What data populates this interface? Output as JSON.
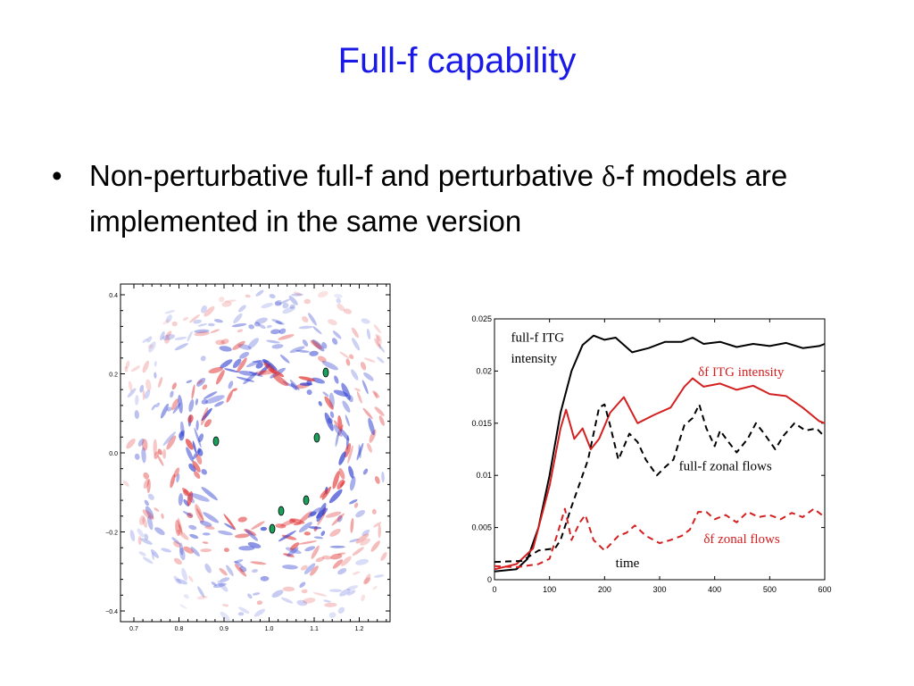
{
  "slide": {
    "title": "Full-f capability",
    "bullet_glyph": "•",
    "bullet_part1": "Non-perturbative full-f and perturbative ",
    "bullet_delta": "δ",
    "bullet_part2": "-f models are implemented in the same version"
  },
  "contour_plot": {
    "x_ticks": [
      "0.7",
      "0.8",
      "0.9",
      "1.0",
      "1.1",
      "1.2"
    ],
    "y_ticks": [
      "0.4",
      "0.2",
      "0.0",
      "−0.2",
      "−0.4"
    ],
    "colors": {
      "positive": "#e03030",
      "negative": "#3040d0",
      "peak": "#19a05a"
    }
  },
  "chart_data": {
    "type": "line",
    "title": "",
    "xlabel": "time",
    "ylabel": "",
    "xlim": [
      0,
      600
    ],
    "ylim": [
      0,
      0.025
    ],
    "x_ticks": [
      "0",
      "100",
      "200",
      "300",
      "400",
      "500",
      "600"
    ],
    "y_ticks": [
      "0",
      "0.005",
      "0.01",
      "0.015",
      "0.02",
      "0.025"
    ],
    "x_tick_values": [
      0,
      100,
      200,
      300,
      400,
      500,
      600
    ],
    "y_tick_values": [
      0,
      0.005,
      0.01,
      0.015,
      0.02,
      0.025
    ],
    "series": [
      {
        "name": "full-f ITG intensity",
        "color": "#000000",
        "dash": "solid",
        "points": [
          [
            0,
            0.0008
          ],
          [
            40,
            0.001
          ],
          [
            60,
            0.002
          ],
          [
            80,
            0.005
          ],
          [
            100,
            0.01
          ],
          [
            120,
            0.016
          ],
          [
            140,
            0.02
          ],
          [
            160,
            0.0225
          ],
          [
            180,
            0.0234
          ],
          [
            200,
            0.023
          ],
          [
            220,
            0.0232
          ],
          [
            250,
            0.0218
          ],
          [
            280,
            0.0222
          ],
          [
            310,
            0.0228
          ],
          [
            340,
            0.0228
          ],
          [
            360,
            0.0232
          ],
          [
            380,
            0.0226
          ],
          [
            410,
            0.0228
          ],
          [
            440,
            0.0223
          ],
          [
            470,
            0.0226
          ],
          [
            500,
            0.0224
          ],
          [
            530,
            0.0227
          ],
          [
            560,
            0.0222
          ],
          [
            590,
            0.0224
          ],
          [
            600,
            0.0226
          ]
        ]
      },
      {
        "name": "δf ITG intensity",
        "color": "#d42020",
        "dash": "solid",
        "points": [
          [
            0,
            0.001
          ],
          [
            40,
            0.0015
          ],
          [
            70,
            0.003
          ],
          [
            100,
            0.009
          ],
          [
            120,
            0.0145
          ],
          [
            130,
            0.0163
          ],
          [
            145,
            0.0135
          ],
          [
            160,
            0.0145
          ],
          [
            175,
            0.0125
          ],
          [
            190,
            0.0135
          ],
          [
            210,
            0.016
          ],
          [
            235,
            0.0175
          ],
          [
            260,
            0.015
          ],
          [
            290,
            0.0158
          ],
          [
            320,
            0.0165
          ],
          [
            345,
            0.0185
          ],
          [
            360,
            0.0193
          ],
          [
            380,
            0.0185
          ],
          [
            410,
            0.0188
          ],
          [
            440,
            0.0182
          ],
          [
            470,
            0.0186
          ],
          [
            500,
            0.0178
          ],
          [
            530,
            0.0176
          ],
          [
            560,
            0.0165
          ],
          [
            590,
            0.0152
          ],
          [
            600,
            0.015
          ]
        ]
      },
      {
        "name": "full-f zonal flows",
        "color": "#000000",
        "dash": "dashed",
        "points": [
          [
            0,
            0.0017
          ],
          [
            50,
            0.0018
          ],
          [
            80,
            0.0028
          ],
          [
            110,
            0.003
          ],
          [
            120,
            0.0038
          ],
          [
            140,
            0.007
          ],
          [
            170,
            0.0115
          ],
          [
            190,
            0.0165
          ],
          [
            200,
            0.0168
          ],
          [
            210,
            0.0148
          ],
          [
            225,
            0.0115
          ],
          [
            245,
            0.014
          ],
          [
            260,
            0.0132
          ],
          [
            275,
            0.0115
          ],
          [
            295,
            0.01
          ],
          [
            310,
            0.0108
          ],
          [
            325,
            0.0115
          ],
          [
            345,
            0.0148
          ],
          [
            360,
            0.0155
          ],
          [
            372,
            0.0168
          ],
          [
            385,
            0.0145
          ],
          [
            400,
            0.0128
          ],
          [
            410,
            0.0143
          ],
          [
            425,
            0.0132
          ],
          [
            440,
            0.0122
          ],
          [
            460,
            0.0135
          ],
          [
            475,
            0.015
          ],
          [
            490,
            0.014
          ],
          [
            510,
            0.0125
          ],
          [
            525,
            0.0138
          ],
          [
            545,
            0.015
          ],
          [
            565,
            0.0143
          ],
          [
            585,
            0.0145
          ],
          [
            600,
            0.0137
          ]
        ]
      },
      {
        "name": "δf zonal flows",
        "color": "#d42020",
        "dash": "dashed",
        "points": [
          [
            0,
            0.0013
          ],
          [
            40,
            0.0012
          ],
          [
            80,
            0.0015
          ],
          [
            100,
            0.002
          ],
          [
            115,
            0.0045
          ],
          [
            128,
            0.0068
          ],
          [
            140,
            0.0038
          ],
          [
            155,
            0.0055
          ],
          [
            165,
            0.0062
          ],
          [
            180,
            0.0038
          ],
          [
            200,
            0.0028
          ],
          [
            225,
            0.0042
          ],
          [
            240,
            0.0045
          ],
          [
            255,
            0.0052
          ],
          [
            275,
            0.0042
          ],
          [
            300,
            0.0035
          ],
          [
            320,
            0.0038
          ],
          [
            340,
            0.0042
          ],
          [
            355,
            0.0048
          ],
          [
            370,
            0.0065
          ],
          [
            385,
            0.0065
          ],
          [
            400,
            0.0058
          ],
          [
            420,
            0.0062
          ],
          [
            440,
            0.0055
          ],
          [
            460,
            0.0065
          ],
          [
            480,
            0.006
          ],
          [
            500,
            0.0062
          ],
          [
            520,
            0.0058
          ],
          [
            540,
            0.0064
          ],
          [
            560,
            0.006
          ],
          [
            580,
            0.0068
          ],
          [
            600,
            0.006
          ]
        ]
      }
    ],
    "annotations": [
      {
        "text": "full-f ITG",
        "x": 30,
        "y": 0.0228,
        "color": "#000000"
      },
      {
        "text": "intensity",
        "x": 30,
        "y": 0.0208,
        "color": "#000000"
      },
      {
        "text": "δf ITG intensity",
        "x": 370,
        "y": 0.0195,
        "color": "#d42020"
      },
      {
        "text": "full-f zonal flows",
        "x": 335,
        "y": 0.0105,
        "color": "#000000"
      },
      {
        "text": "δf zonal flows",
        "x": 380,
        "y": 0.0035,
        "color": "#d42020"
      },
      {
        "text": "time",
        "x": 220,
        "y": 0.0012,
        "color": "#000000"
      }
    ]
  }
}
